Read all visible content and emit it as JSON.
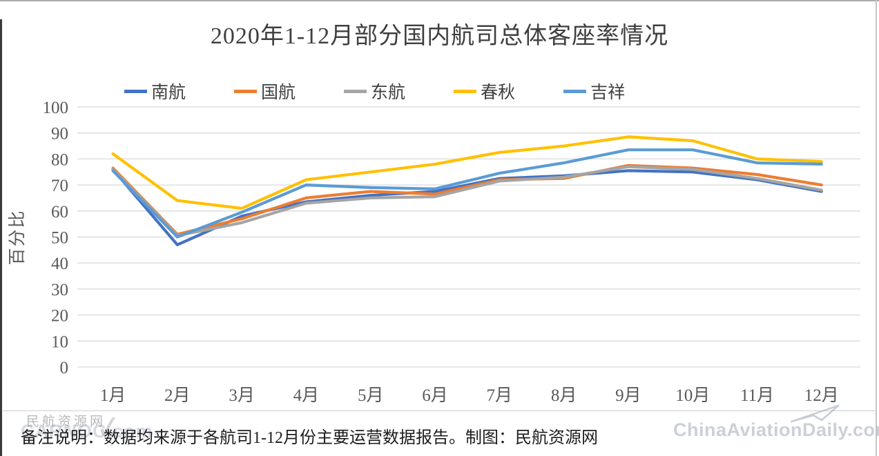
{
  "title": "2020年1-12月部分国内航司总体客座率情况",
  "footer": {
    "note": "备注说明：数据均来源于各航司1-12月份主要运营数据报告。制图：民航资源网"
  },
  "watermarks": {
    "left_cn": "民航资源网",
    "left_en": "CARNOC.com",
    "check_icon": "✓",
    "right": "ChinaAviationDaily.com"
  },
  "chart_data": {
    "type": "line",
    "title": "2020年1-12月部分国内航司总体客座率情况",
    "xlabel": "",
    "ylabel": "百分比",
    "ylim": [
      0,
      100
    ],
    "ytick_step": 10,
    "yticks": [
      0,
      10,
      20,
      30,
      40,
      50,
      60,
      70,
      80,
      90,
      100
    ],
    "grid": "horizontal",
    "legend_position": "top",
    "categories": [
      "1月",
      "2月",
      "3月",
      "4月",
      "5月",
      "6月",
      "7月",
      "8月",
      "9月",
      "10月",
      "11月",
      "12月"
    ],
    "series": [
      {
        "key": "nanhang",
        "name": "南航",
        "color": "#4472C4",
        "values": [
          76,
          47,
          58,
          63.5,
          66,
          67.5,
          72.5,
          73.5,
          75.5,
          75,
          72,
          67.5
        ]
      },
      {
        "key": "guohang",
        "name": "国航",
        "color": "#ED7D31",
        "values": [
          76.5,
          51,
          57,
          65,
          67.5,
          66.5,
          72,
          72.5,
          77.5,
          76.5,
          74,
          70
        ]
      },
      {
        "key": "donghang",
        "name": "东航",
        "color": "#A5A5A5",
        "values": [
          76,
          50.5,
          55.5,
          63,
          65,
          65.5,
          71.5,
          73,
          77,
          76,
          72.5,
          68
        ]
      },
      {
        "key": "chunqiu",
        "name": "春秋",
        "color": "#FFC000",
        "values": [
          82,
          64,
          61,
          72,
          75,
          78,
          82.5,
          85,
          88.5,
          87,
          80,
          79
        ]
      },
      {
        "key": "jixiang",
        "name": "吉祥",
        "color": "#5B9BD5",
        "values": [
          75.5,
          50,
          59.5,
          70,
          69,
          68.5,
          74.5,
          78.5,
          83.5,
          83.5,
          78.5,
          78
        ]
      }
    ]
  }
}
